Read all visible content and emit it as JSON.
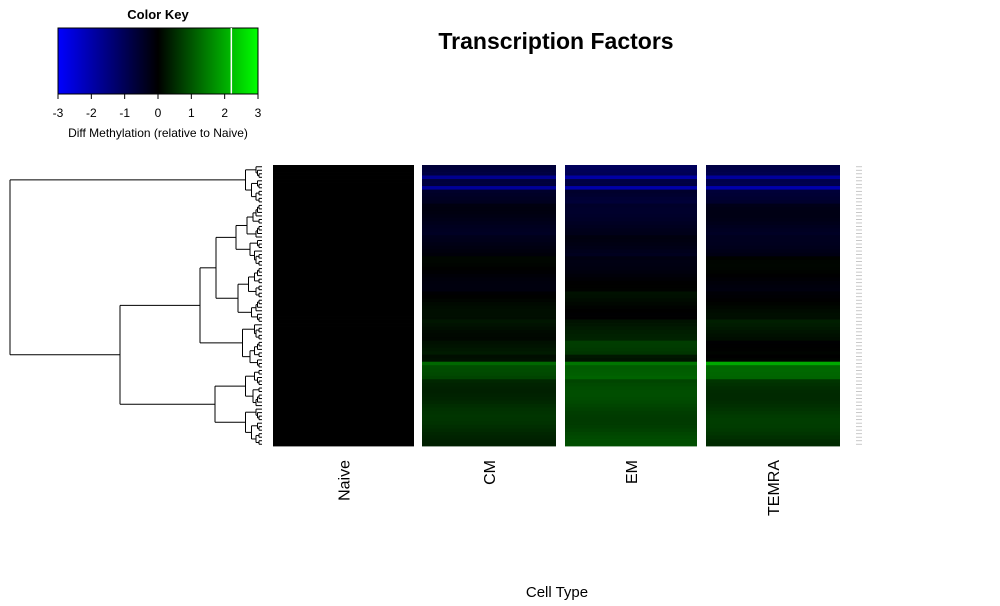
{
  "chart_data": {
    "type": "heatmap",
    "title": "Transcription Factors",
    "xlabel": "Cell Type",
    "ylabel": "",
    "columns": [
      "Naive",
      "CM",
      "EM",
      "TEMRA"
    ],
    "color_key": {
      "title": "Color Key",
      "label": "Diff Methylation (relative to Naive)",
      "range": [
        -3,
        3
      ],
      "ticks": [
        -3,
        -2,
        -1,
        0,
        1,
        2,
        3
      ],
      "colors": {
        "low": "#0000ff",
        "mid": "#000000",
        "high": "#00ff00"
      },
      "histogram_marker": 2.2
    },
    "row_count": 80,
    "row_labels_visible": false,
    "row_groups": [
      {
        "rows": 3,
        "values": [
          0,
          -0.7,
          -1.0,
          -0.9
        ]
      },
      {
        "rows": 1,
        "values": [
          0,
          -1.6,
          -2.0,
          -1.8
        ]
      },
      {
        "rows": 2,
        "values": [
          0,
          -0.6,
          -0.9,
          -0.8
        ]
      },
      {
        "rows": 1,
        "values": [
          0,
          -1.7,
          -2.1,
          -1.9
        ]
      },
      {
        "rows": 4,
        "values": [
          0,
          -0.45,
          -0.6,
          -0.55
        ]
      },
      {
        "rows": 9,
        "values": [
          0,
          -0.3,
          -0.4,
          -0.35
        ]
      },
      {
        "rows": 6,
        "values": [
          0,
          -0.2,
          -0.3,
          -0.25
        ]
      },
      {
        "rows": 10,
        "values": [
          0,
          -0.05,
          -0.1,
          -0.05
        ]
      },
      {
        "rows": 8,
        "values": [
          0,
          0.05,
          0.1,
          0.05
        ]
      },
      {
        "rows": 6,
        "values": [
          0,
          0.2,
          0.3,
          0.25
        ]
      },
      {
        "rows": 4,
        "values": [
          0,
          0.3,
          0.6,
          0.1
        ]
      },
      {
        "rows": 2,
        "values": [
          0,
          0.1,
          0.3,
          0.0
        ]
      },
      {
        "rows": 1,
        "values": [
          0,
          1.1,
          1.5,
          1.9
        ]
      },
      {
        "rows": 4,
        "values": [
          0,
          0.8,
          1.2,
          1.1
        ]
      },
      {
        "rows": 19,
        "values": [
          0,
          0.5,
          0.8,
          0.6
        ]
      }
    ]
  }
}
